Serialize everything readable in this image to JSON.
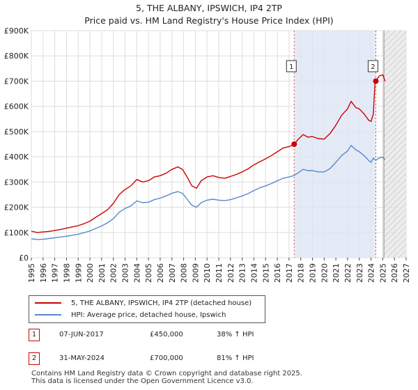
{
  "title_line1": "5, THE ALBANY, IPSWICH, IP4 2TP",
  "title_line2": "Price paid vs. HM Land Registry's House Price Index (HPI)",
  "chart_data": {
    "type": "line",
    "title": "5, THE ALBANY, IPSWICH, IP4 2TP — Price paid vs. HM Land Registry's House Price Index (HPI)",
    "xlabel": "",
    "ylabel": "",
    "xlim": [
      1995,
      2027
    ],
    "ylim": [
      0,
      900000
    ],
    "grid": true,
    "y_ticks": [
      0,
      100000,
      200000,
      300000,
      400000,
      500000,
      600000,
      700000,
      800000,
      900000
    ],
    "y_tick_labels": [
      "£0",
      "£100K",
      "£200K",
      "£300K",
      "£400K",
      "£500K",
      "£600K",
      "£700K",
      "£800K",
      "£900K"
    ],
    "x_tick_labels": [
      "1995",
      "1996",
      "1997",
      "1998",
      "1999",
      "2000",
      "2001",
      "2002",
      "2003",
      "2004",
      "2005",
      "2006",
      "2007",
      "2008",
      "2009",
      "2010",
      "2011",
      "2012",
      "2013",
      "2014",
      "2015",
      "2016",
      "2017",
      "2018",
      "2019",
      "2020",
      "2021",
      "2022",
      "2023",
      "2024",
      "2025",
      "2026",
      "2027"
    ],
    "shaded_regions": [
      {
        "name": "between-sales",
        "from": 2017.44,
        "to": 2024.41,
        "color": "#dde6f5"
      },
      {
        "name": "future",
        "from": 2025.1,
        "to": 2027,
        "color": "#e8e8e8",
        "hatched": true
      }
    ],
    "series": [
      {
        "name": "5, THE ALBANY, IPSWICH, IP4 2TP (detached house)",
        "color": "#cc0000",
        "x": [
          1995.0,
          1995.5,
          1996.0,
          1996.5,
          1997.0,
          1997.5,
          1998.0,
          1998.5,
          1999.0,
          1999.5,
          2000.0,
          2000.5,
          2001.0,
          2001.5,
          2002.0,
          2002.5,
          2003.0,
          2003.5,
          2004.0,
          2004.5,
          2005.0,
          2005.5,
          2006.0,
          2006.5,
          2007.0,
          2007.5,
          2007.9,
          2008.3,
          2008.7,
          2009.1,
          2009.5,
          2010.0,
          2010.5,
          2011.0,
          2011.5,
          2012.0,
          2012.5,
          2013.0,
          2013.5,
          2014.0,
          2014.5,
          2015.0,
          2015.5,
          2016.0,
          2016.5,
          2017.0,
          2017.44,
          2017.8,
          2018.2,
          2018.6,
          2019.0,
          2019.5,
          2020.0,
          2020.5,
          2021.0,
          2021.5,
          2022.0,
          2022.3,
          2022.7,
          2023.0,
          2023.4,
          2023.8,
          2024.0,
          2024.2,
          2024.35,
          2024.41,
          2024.7,
          2025.0,
          2025.2
        ],
        "values": [
          105000,
          100000,
          102000,
          104000,
          108000,
          112000,
          117000,
          122000,
          127000,
          135000,
          145000,
          160000,
          175000,
          190000,
          215000,
          250000,
          270000,
          285000,
          310000,
          300000,
          305000,
          320000,
          325000,
          335000,
          350000,
          360000,
          350000,
          320000,
          285000,
          275000,
          305000,
          320000,
          325000,
          318000,
          315000,
          322000,
          330000,
          340000,
          352000,
          368000,
          380000,
          392000,
          405000,
          420000,
          435000,
          440000,
          450000,
          470000,
          488000,
          478000,
          480000,
          472000,
          470000,
          492000,
          525000,
          565000,
          590000,
          620000,
          595000,
          590000,
          570000,
          545000,
          540000,
          570000,
          700000,
          700000,
          720000,
          725000,
          700000
        ]
      },
      {
        "name": "HPI: Average price, detached house, Ipswich",
        "color": "#5588cc",
        "x": [
          1995.0,
          1995.5,
          1996.0,
          1996.5,
          1997.0,
          1997.5,
          1998.0,
          1998.5,
          1999.0,
          1999.5,
          2000.0,
          2000.5,
          2001.0,
          2001.5,
          2002.0,
          2002.5,
          2003.0,
          2003.5,
          2004.0,
          2004.5,
          2005.0,
          2005.5,
          2006.0,
          2006.5,
          2007.0,
          2007.5,
          2007.9,
          2008.3,
          2008.7,
          2009.1,
          2009.5,
          2010.0,
          2010.5,
          2011.0,
          2011.5,
          2012.0,
          2012.5,
          2013.0,
          2013.5,
          2014.0,
          2014.5,
          2015.0,
          2015.5,
          2016.0,
          2016.5,
          2017.0,
          2017.44,
          2017.8,
          2018.2,
          2018.6,
          2019.0,
          2019.5,
          2020.0,
          2020.5,
          2021.0,
          2021.5,
          2022.0,
          2022.3,
          2022.7,
          2023.0,
          2023.4,
          2023.8,
          2024.0,
          2024.2,
          2024.41,
          2024.7,
          2025.0,
          2025.2
        ],
        "values": [
          75000,
          72000,
          73000,
          76000,
          79000,
          82000,
          85000,
          89000,
          93000,
          99000,
          106000,
          116000,
          126000,
          138000,
          155000,
          180000,
          195000,
          205000,
          225000,
          218000,
          220000,
          230000,
          236000,
          245000,
          255000,
          262000,
          255000,
          232000,
          208000,
          200000,
          218000,
          228000,
          232000,
          228000,
          226000,
          230000,
          237000,
          245000,
          254000,
          266000,
          277000,
          285000,
          294000,
          305000,
          315000,
          320000,
          326000,
          337000,
          350000,
          345000,
          345000,
          340000,
          340000,
          353000,
          378000,
          405000,
          423000,
          445000,
          428000,
          420000,
          405000,
          385000,
          378000,
          395000,
          386000,
          396000,
          398000,
          388000
        ]
      }
    ],
    "annotations": [
      {
        "label": "1",
        "x": 2017.44,
        "price": 450000
      },
      {
        "label": "2",
        "x": 2024.41,
        "price": 700000
      }
    ]
  },
  "legend": {
    "property_label": "5, THE ALBANY, IPSWICH, IP4 2TP (detached house)",
    "hpi_label": "HPI: Average price, detached house, Ipswich",
    "property_color": "#cc0000",
    "hpi_color": "#5588cc"
  },
  "sales": [
    {
      "num": "1",
      "date": "07-JUN-2017",
      "price": "£450,000",
      "hpi": "38% ↑ HPI"
    },
    {
      "num": "2",
      "date": "31-MAY-2024",
      "price": "£700,000",
      "hpi": "81% ↑ HPI"
    }
  ],
  "footer": {
    "line1": "Contains HM Land Registry data © Crown copyright and database right 2025.",
    "line2": "This data is licensed under the Open Government Licence v3.0."
  }
}
